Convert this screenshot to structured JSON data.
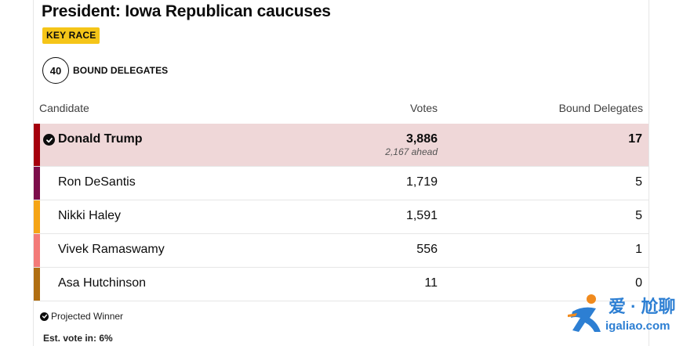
{
  "race": {
    "title": "President: Iowa Republican caucuses",
    "badge": "KEY RACE",
    "bound_delegates_count": "40",
    "bound_delegates_label": "BOUND DELEGATES"
  },
  "table": {
    "headers": {
      "candidate": "Candidate",
      "votes": "Votes",
      "delegates": "Bound Delegates"
    },
    "rows": [
      {
        "name": "Donald Trump",
        "votes": "3,886",
        "ahead": "2,167 ahead",
        "delegates": "17",
        "color": "#a5000d",
        "winner": true
      },
      {
        "name": "Ron DeSantis",
        "votes": "1,719",
        "delegates": "5",
        "color": "#7c0d4a"
      },
      {
        "name": "Nikki Haley",
        "votes": "1,591",
        "delegates": "5",
        "color": "#f5a415"
      },
      {
        "name": "Vivek Ramaswamy",
        "votes": "556",
        "delegates": "1",
        "color": "#f37a78"
      },
      {
        "name": "Asa Hutchinson",
        "votes": "11",
        "delegates": "0",
        "color": "#b06e12"
      }
    ]
  },
  "footer": {
    "projected_winner": "Projected Winner",
    "est_vote": "Est. vote in: 6%"
  },
  "watermark": {
    "line1": "爱 · 尬聊",
    "line2": "igaliao.com"
  },
  "colors": {
    "badge": "#f5c518",
    "winner_row_bg": "#efd7d8"
  }
}
